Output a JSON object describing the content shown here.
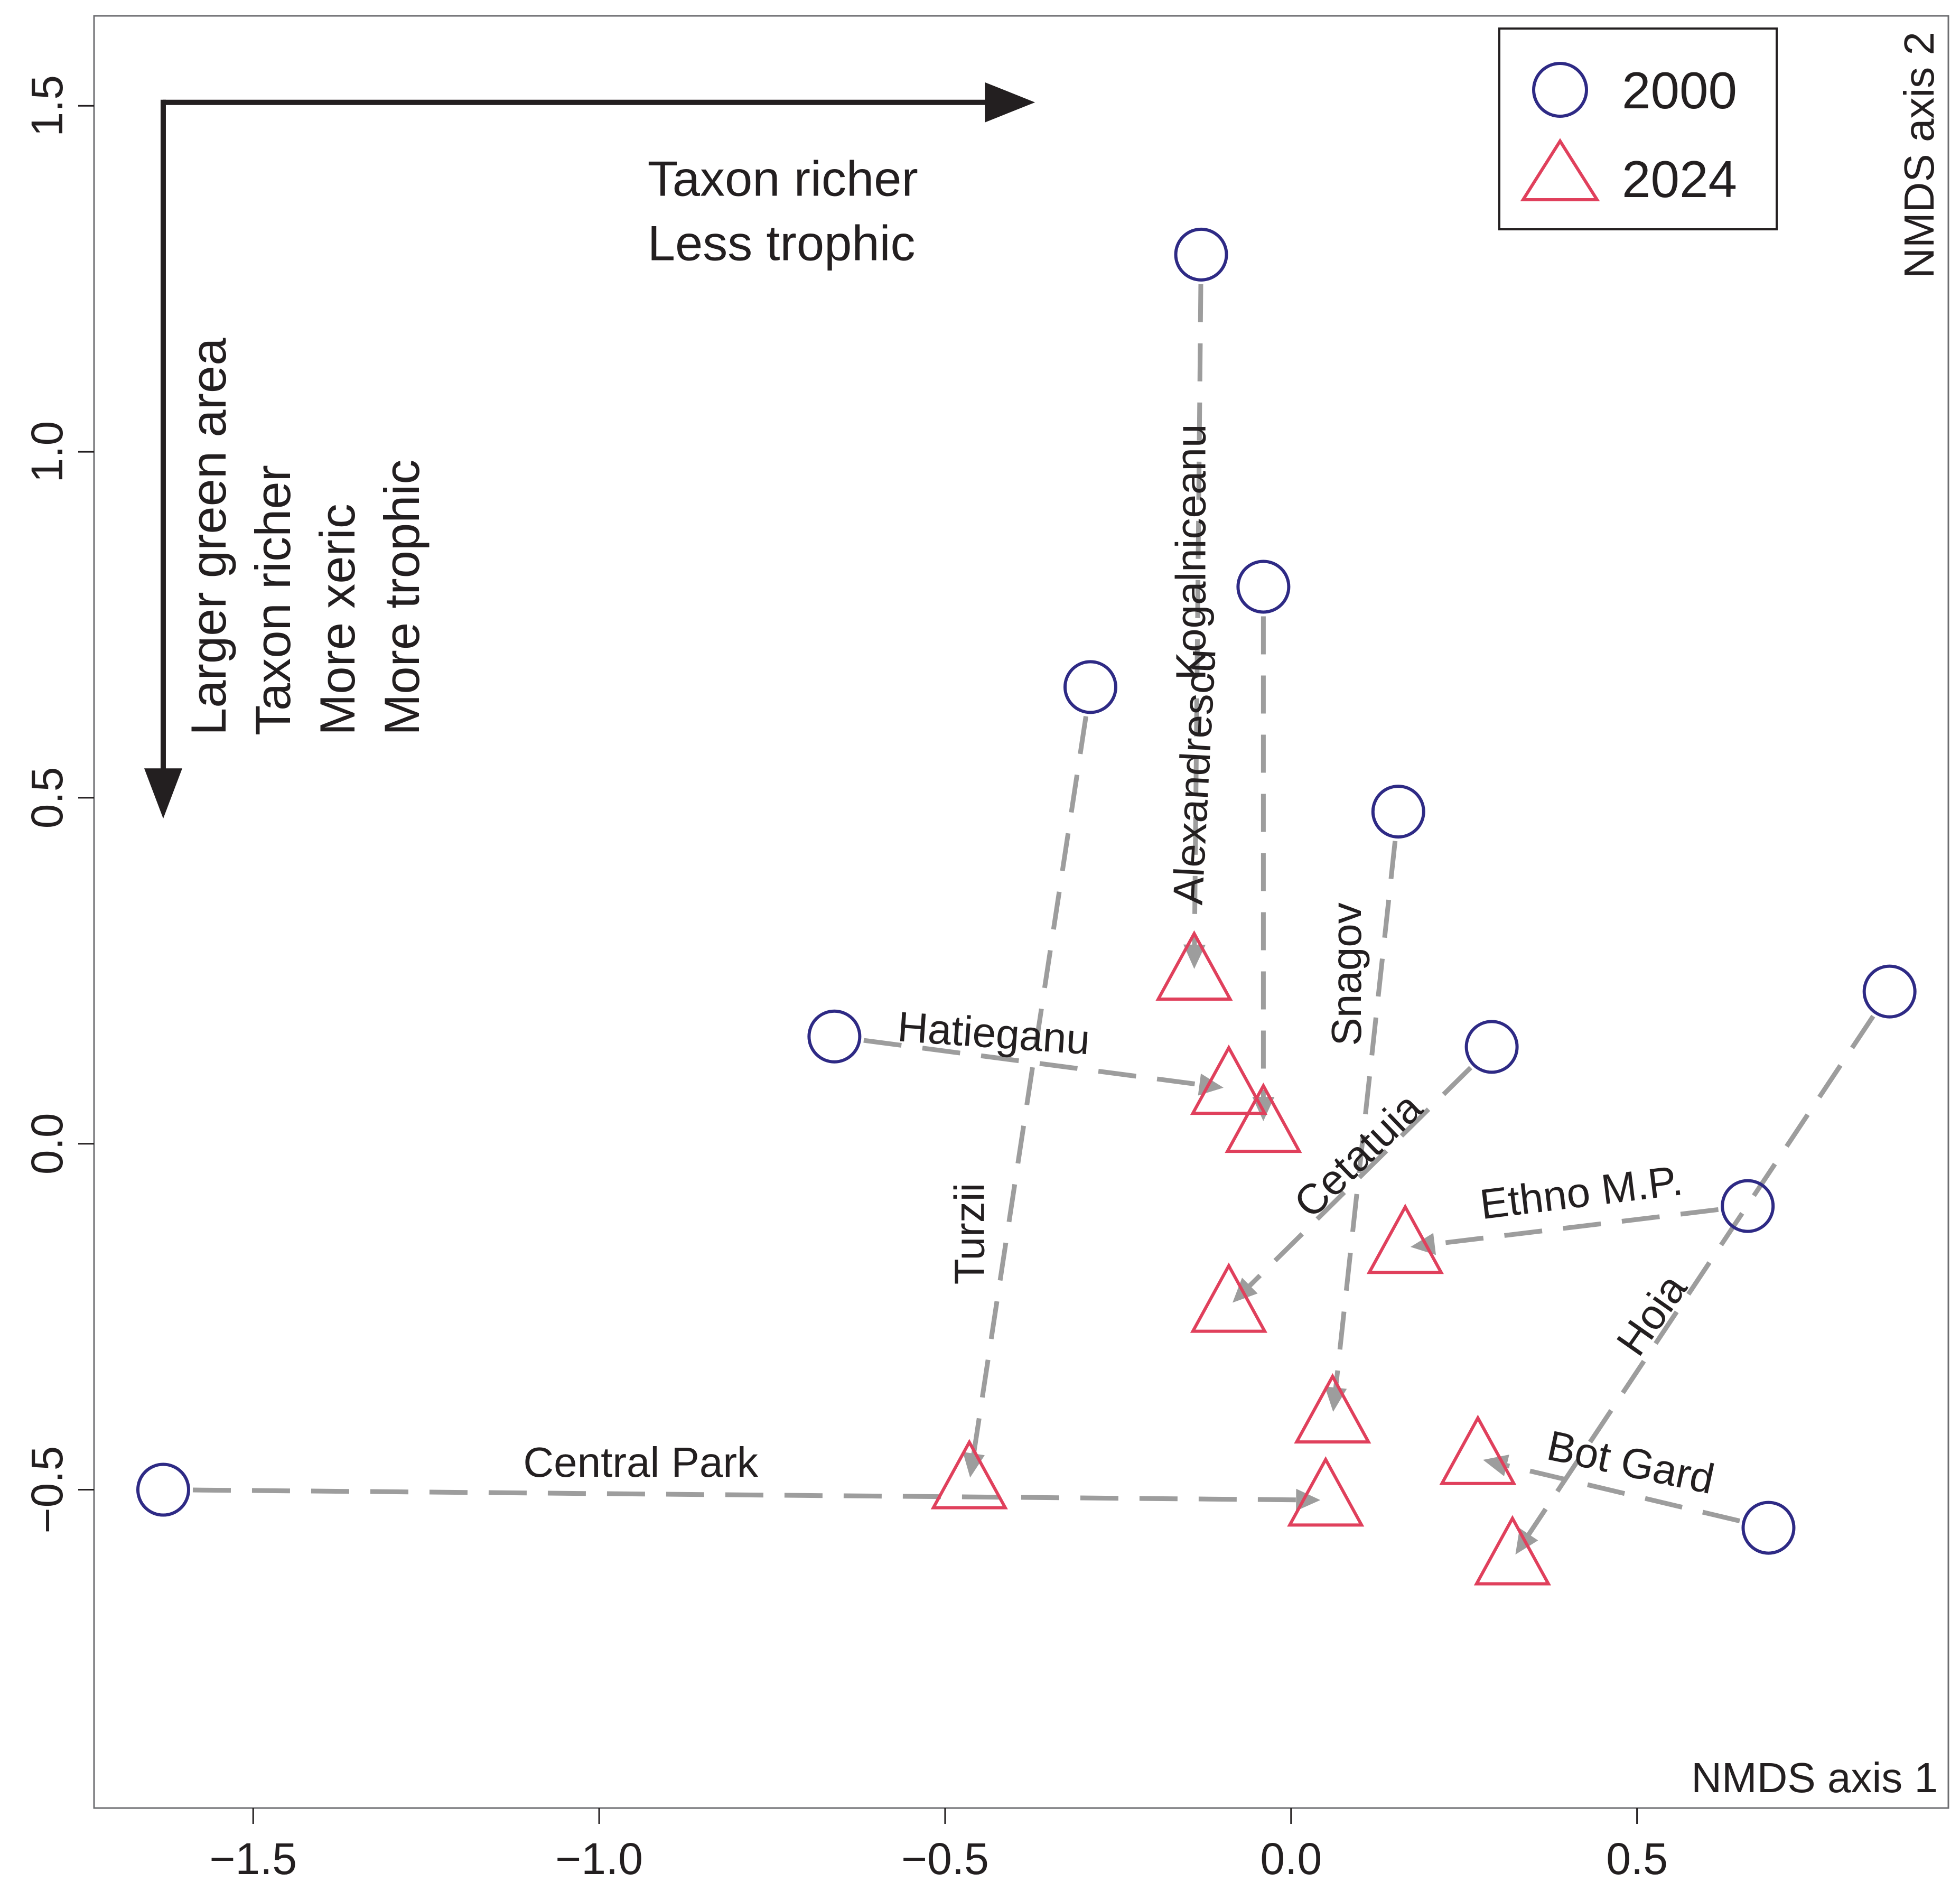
{
  "chart_data": {
    "type": "scatter",
    "title": "",
    "xlabel": "NMDS axis 1",
    "ylabel": "NMDS axis 2",
    "xlim": [
      -1.73,
      0.95
    ],
    "ylim": [
      -0.96,
      1.63
    ],
    "x_ticks": [
      -1.5,
      -1.0,
      -0.5,
      0.0,
      0.5
    ],
    "x_tick_labels": [
      "−1.5",
      "−1.0",
      "−0.5",
      "0.0",
      "0.5"
    ],
    "y_ticks": [
      -0.5,
      0.0,
      0.5,
      1.0,
      1.5
    ],
    "y_tick_labels": [
      "−0.5",
      "0.0",
      "0.5",
      "1.0",
      "1.5"
    ],
    "grid": false,
    "legend": {
      "position": "top-right",
      "entries": [
        {
          "label": "2000",
          "marker": "circle",
          "color": "#2e2a85"
        },
        {
          "label": "2024",
          "marker": "triangle",
          "color": "#e0405c"
        }
      ]
    },
    "colors": {
      "y2000": "#2e2a85",
      "y2024": "#e0405c",
      "trajectory": "#9d9d9d",
      "axis": "#231f20",
      "annotation_arrow": "#231f20"
    },
    "series": [
      {
        "name": "2000",
        "marker": "circle",
        "points": [
          {
            "site": "Central Park",
            "x": -1.63,
            "y": -0.5
          },
          {
            "site": "Hatieganu",
            "x": -0.66,
            "y": 0.155
          },
          {
            "site": "Turzii",
            "x": -0.29,
            "y": 0.66
          },
          {
            "site": "Kogalniceanu",
            "x": -0.13,
            "y": 1.285
          },
          {
            "site": "Alexandrescu",
            "x": -0.04,
            "y": 0.805
          },
          {
            "site": "Snagov",
            "x": 0.155,
            "y": 0.48
          },
          {
            "site": "Cetatuia",
            "x": 0.29,
            "y": 0.14
          },
          {
            "site": "Ethno M.P.",
            "x": 0.66,
            "y": -0.09
          },
          {
            "site": "Bot Gard",
            "x": 0.69,
            "y": -0.555
          },
          {
            "site": "Hoia",
            "x": 0.865,
            "y": 0.22
          }
        ]
      },
      {
        "name": "2024",
        "marker": "triangle",
        "points": [
          {
            "site": "Central Park",
            "x": 0.05,
            "y": -0.515
          },
          {
            "site": "Hatieganu",
            "x": -0.09,
            "y": 0.08
          },
          {
            "site": "Turzii",
            "x": -0.465,
            "y": -0.49
          },
          {
            "site": "Kogalniceanu",
            "x": -0.14,
            "y": 0.245
          },
          {
            "site": "Alexandrescu",
            "x": -0.04,
            "y": 0.025
          },
          {
            "site": "Snagov",
            "x": 0.06,
            "y": -0.395
          },
          {
            "site": "Cetatuia",
            "x": -0.09,
            "y": -0.235
          },
          {
            "site": "Ethno M.P.",
            "x": 0.165,
            "y": -0.15
          },
          {
            "site": "Bot Gard",
            "x": 0.27,
            "y": -0.455
          },
          {
            "site": "Hoia",
            "x": 0.32,
            "y": -0.6
          }
        ]
      }
    ],
    "trajectories": [
      {
        "site": "Central Park",
        "from": [
          -1.63,
          -0.5
        ],
        "to": [
          0.05,
          -0.515
        ]
      },
      {
        "site": "Hatieganu",
        "from": [
          -0.66,
          0.155
        ],
        "to": [
          -0.09,
          0.08
        ]
      },
      {
        "site": "Turzii",
        "from": [
          -0.29,
          0.66
        ],
        "to": [
          -0.465,
          -0.49
        ]
      },
      {
        "site": "Kogalniceanu",
        "from": [
          -0.13,
          1.285
        ],
        "to": [
          -0.14,
          0.245
        ]
      },
      {
        "site": "Alexandrescu",
        "from": [
          -0.04,
          0.805
        ],
        "to": [
          -0.04,
          0.025
        ]
      },
      {
        "site": "Snagov",
        "from": [
          0.155,
          0.48
        ],
        "to": [
          0.06,
          -0.395
        ]
      },
      {
        "site": "Cetatuia",
        "from": [
          0.29,
          0.14
        ],
        "to": [
          -0.09,
          -0.235
        ]
      },
      {
        "site": "Ethno M.P.",
        "from": [
          0.66,
          -0.09
        ],
        "to": [
          0.165,
          -0.15
        ]
      },
      {
        "site": "Bot Gard",
        "from": [
          0.69,
          -0.555
        ],
        "to": [
          0.27,
          -0.455
        ]
      },
      {
        "site": "Hoia",
        "from": [
          0.865,
          0.22
        ],
        "to": [
          0.32,
          -0.6
        ]
      }
    ],
    "site_labels": [
      {
        "text": "Central Park",
        "x": -0.94,
        "y": -0.465,
        "rotate": 0
      },
      {
        "text": "Hatieganu",
        "x": -0.43,
        "y": 0.155,
        "rotate": 4
      },
      {
        "text": "Turzii",
        "x": -0.46,
        "y": -0.13,
        "rotate": -90
      },
      {
        "text": "Kogalniceanu",
        "x": -0.14,
        "y": 0.855,
        "rotate": -90
      },
      {
        "text": "Alexandrescu",
        "x": -0.135,
        "y": 0.53,
        "rotate": -87
      },
      {
        "text": "Snagov",
        "x": 0.085,
        "y": 0.245,
        "rotate": -90
      },
      {
        "text": "Cetatuia",
        "x": 0.1,
        "y": -0.02,
        "rotate": -44
      },
      {
        "text": "Ethno M.P.",
        "x": 0.42,
        "y": -0.075,
        "rotate": -7
      },
      {
        "text": "Hoia",
        "x": 0.525,
        "y": -0.25,
        "rotate": -55
      },
      {
        "text": "Bot Gard",
        "x": 0.49,
        "y": -0.465,
        "rotate": 12
      }
    ],
    "annotations": {
      "horizontal_arrow": {
        "from": [
          -1.63,
          1.505
        ],
        "to": [
          -0.37,
          1.505
        ],
        "lines": [
          "Taxon richer",
          "Less trophic"
        ],
        "text_anchor": [
          -0.93,
          1.37
        ]
      },
      "vertical_arrow": {
        "from": [
          -1.63,
          1.505
        ],
        "to": [
          -1.63,
          0.47
        ],
        "lines": [
          "Larger green area",
          "Taxon richer",
          "More xeric",
          "More trophic"
        ],
        "text_anchor": [
          -1.54,
          0.59
        ]
      }
    }
  }
}
